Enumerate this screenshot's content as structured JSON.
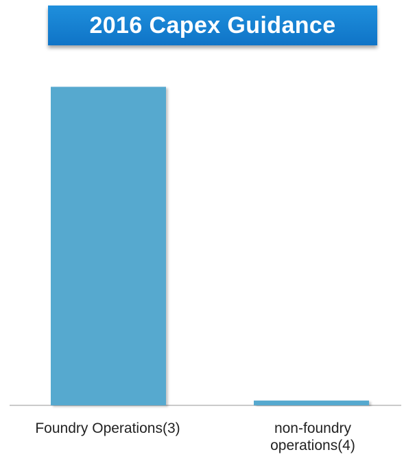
{
  "chart_data": {
    "type": "bar",
    "title": "2016 Capex Guidance",
    "categories": [
      "Foundry Operations(3)",
      "non-foundry operations(4)"
    ],
    "values": [
      100,
      1.5
    ],
    "xlabel": "",
    "ylabel": "",
    "ylim": [
      0,
      110
    ],
    "grid": false,
    "legend": "none",
    "colors": {
      "bar": "#57a9cf",
      "title_bg": "#1783d3",
      "axis": "#b8b8b8"
    }
  }
}
